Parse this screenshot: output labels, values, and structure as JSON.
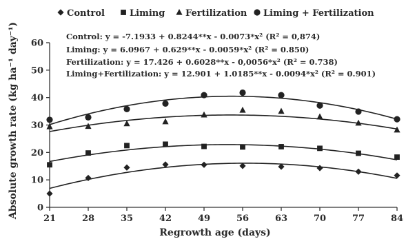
{
  "chart_data": {
    "type": "scatter",
    "xlabel": "Regrowth age (days)",
    "ylabel": "Absolute growth rate (kg ha⁻¹ day⁻¹)",
    "x": [
      21,
      28,
      35,
      42,
      49,
      56,
      63,
      70,
      77,
      84
    ],
    "xlim": [
      21,
      84
    ],
    "ylim": [
      0,
      60
    ],
    "yticks": [
      0,
      10,
      20,
      30,
      40,
      50,
      60
    ],
    "grid": false,
    "legend_position": "top",
    "series": [
      {
        "name": "Control",
        "marker": "diamond",
        "values": [
          5.0,
          10.7,
          14.5,
          15.6,
          15.5,
          15.1,
          14.8,
          14.3,
          13.0,
          11.6
        ],
        "fit": {
          "a": -7.1933,
          "b": 0.8244,
          "c": -0.0073
        },
        "equation": "Control: y = -7.1933 + 0.8244**x - 0.0073*x² (R² = 0,874)"
      },
      {
        "name": "Liming",
        "marker": "square",
        "values": [
          15.5,
          19.8,
          22.5,
          23.0,
          22.2,
          22.0,
          22.1,
          21.5,
          19.7,
          18.3
        ],
        "fit": {
          "a": 6.0967,
          "b": 0.629,
          "c": -0.0059
        },
        "equation": "Liming: y = 6.0967 + 0.629**x - 0.0059*x² (R² = 0.850)"
      },
      {
        "name": "Fertilization",
        "marker": "triangle",
        "values": [
          29.4,
          29.5,
          30.5,
          31.2,
          33.7,
          35.4,
          35.0,
          33.0,
          30.7,
          28.2
        ],
        "fit": {
          "a": 17.426,
          "b": 0.6028,
          "c": -0.0056
        },
        "equation": "Fertilization: y = 17.426 + 0.6028**x - 0,0056*x² (R² = 0.738)"
      },
      {
        "name": "Liming + Fertilization",
        "marker": "circle",
        "values": [
          31.9,
          32.8,
          35.8,
          37.8,
          40.9,
          41.8,
          40.9,
          37.1,
          34.9,
          32.1
        ],
        "fit": {
          "a": 12.901,
          "b": 1.0185,
          "c": -0.0094
        },
        "equation": "Liming+Fertilization: y = 12.901 + 1.0185**x - 0.0094*x² (R² = 0.901)"
      }
    ]
  }
}
